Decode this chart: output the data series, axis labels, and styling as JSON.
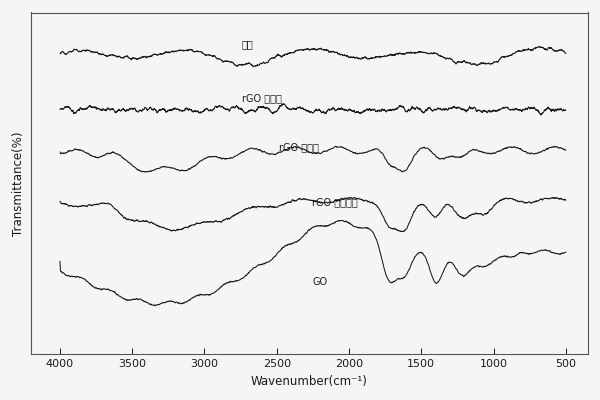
{
  "xlabel": "Wavenumber(cm⁻¹)",
  "ylabel": "Transmittance(%)",
  "x_ticks": [
    4000,
    3500,
    3000,
    2500,
    2000,
    1500,
    1000,
    500
  ],
  "background_color": "#f5f5f5",
  "line_color": "#1a1a1a",
  "label_graphite": "石墨",
  "label_rgo1": "rGO 无功能",
  "label_rgo2": "rGO 热还原",
  "label_rgo3": "rGO 化学还原",
  "label_go": "GO"
}
